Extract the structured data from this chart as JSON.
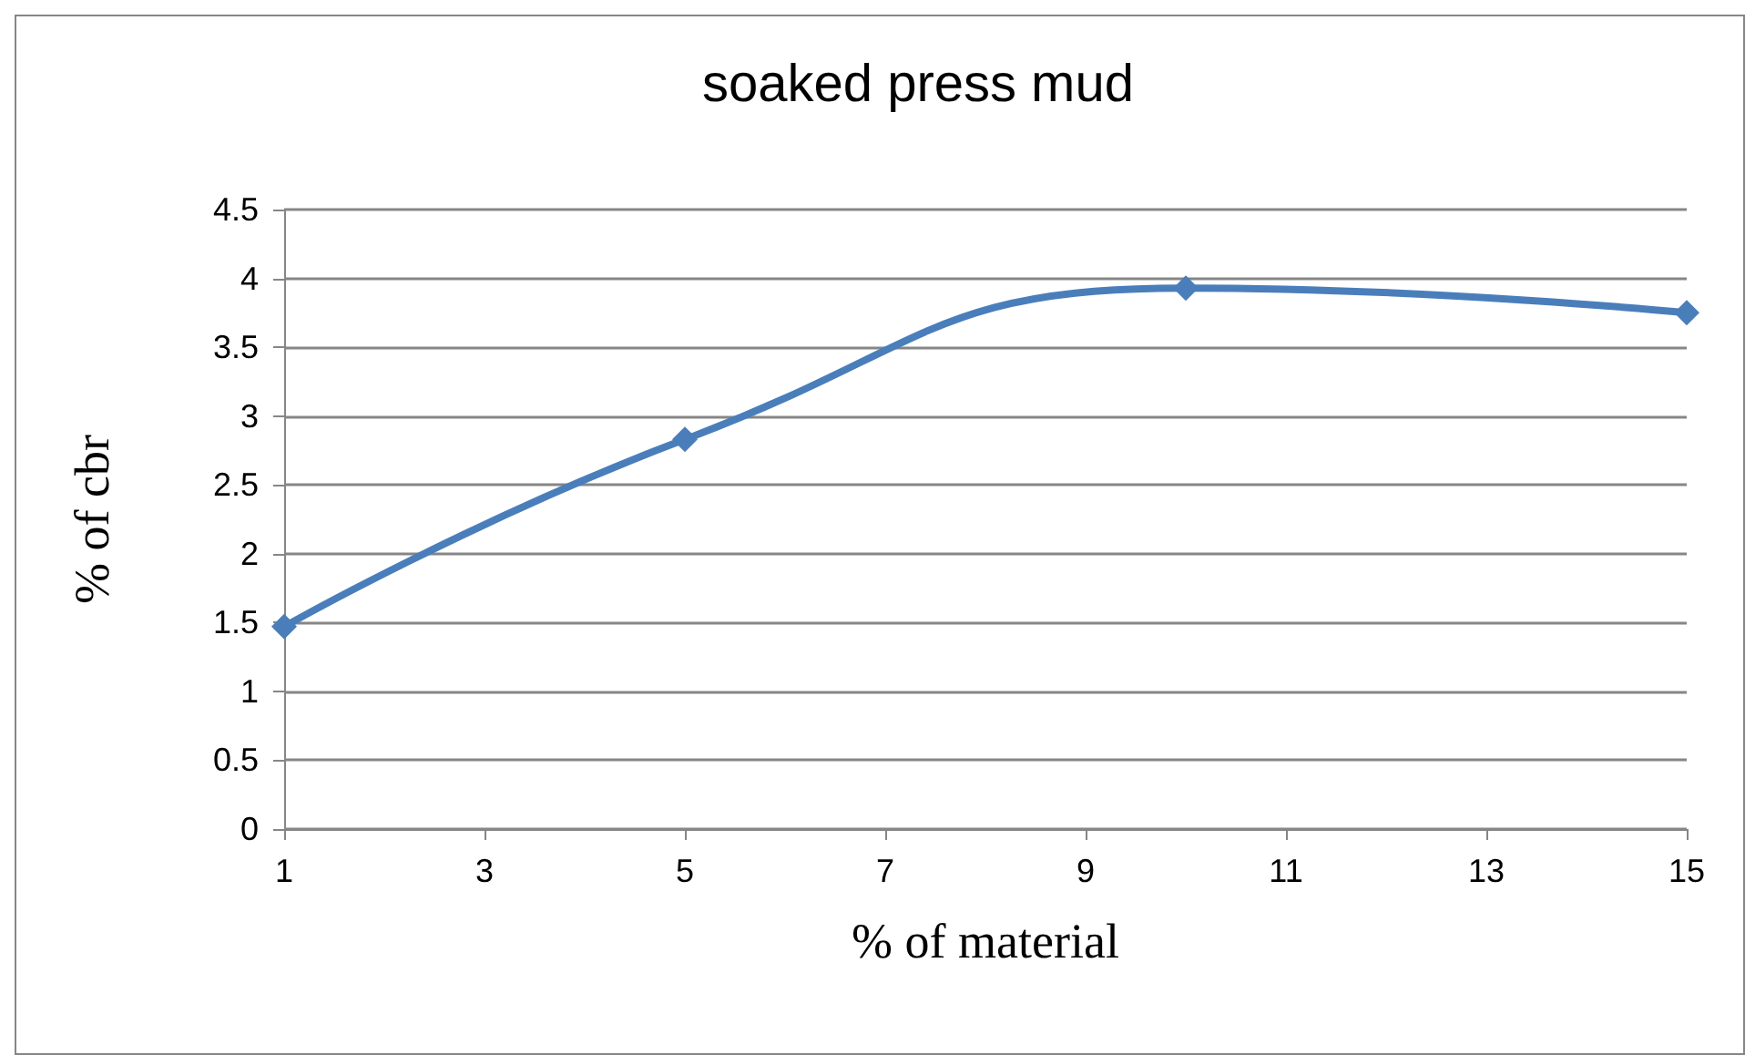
{
  "chart_data": {
    "type": "line",
    "title": "soaked press mud",
    "xlabel": "% of material",
    "ylabel": "% of cbr",
    "x": [
      1,
      5,
      10,
      15
    ],
    "series": [
      {
        "color": "#4a7ebb",
        "values": [
          1.47,
          2.83,
          3.93,
          3.75
        ]
      }
    ],
    "xlim": [
      1,
      15
    ],
    "xticks": [
      1,
      3,
      5,
      7,
      9,
      11,
      13,
      15
    ],
    "ylim": [
      0,
      4.5
    ],
    "yticks": [
      0,
      0.5,
      1,
      1.5,
      2,
      2.5,
      3,
      3.5,
      4,
      4.5
    ],
    "grid": "y",
    "marker": "diamond",
    "line_style": "solid"
  }
}
